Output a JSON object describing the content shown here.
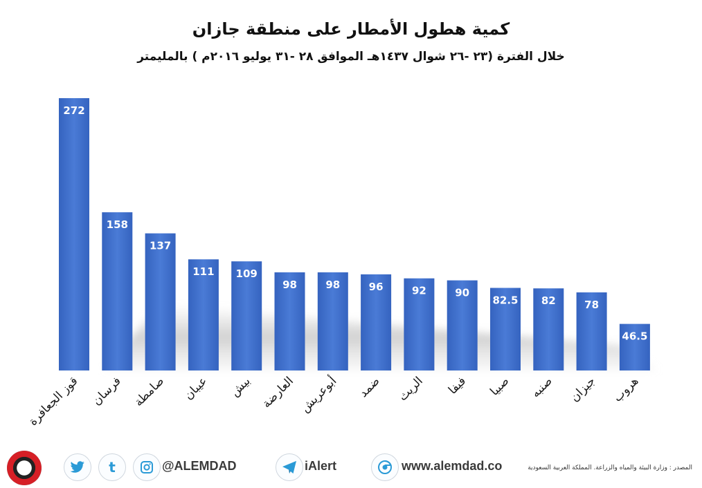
{
  "header": {
    "title": "كمية هطول الأمطار على منطقة جازان",
    "subtitle": "خلال  الفترة (٢٣ -٢٦ شوال ١٤٣٧هـ الموافق ٢٨ -٣١ يوليو ٢٠١٦م ) بالمليمتر"
  },
  "chart_data": {
    "type": "bar",
    "title": "كمية هطول الأمطار على منطقة جازان",
    "subtitle": "خلال  الفترة (٢٣ -٢٦ شوال ١٤٣٧هـ الموافق ٢٨ -٣١ يوليو ٢٠١٦م ) بالمليمتر",
    "ylabel": "",
    "xlabel": "",
    "ylim": [
      0,
      272
    ],
    "grid": false,
    "categories": [
      "قوز الجعافرة",
      "فرسان",
      "صامطة",
      "عيبان",
      "بيش",
      "العارضة",
      "أبوعريش",
      "ضمد",
      "الريث",
      "فيفا",
      "صبيا",
      "صنبه",
      "جيزان",
      "هروب"
    ],
    "values": [
      272,
      158,
      137,
      111,
      109,
      98,
      98,
      96,
      92,
      90,
      82.5,
      82,
      78,
      46.5
    ],
    "value_labels": [
      "272",
      "158",
      "137",
      "111",
      "109",
      "98",
      "98",
      "96",
      "92",
      "90",
      "82.5",
      "82",
      "78",
      "46.5"
    ],
    "bar_color": "#3f6fcc",
    "bar_color_top": "#4f80d8",
    "bar_color_bottom": "#2c56ad"
  },
  "footer": {
    "handle": "@ALEMDAD",
    "app": "iAlert",
    "website": "www.alemdad.co",
    "source": "المصدر : وزارة البيئة والمياه والزراعة. المملكة العربية السعودية",
    "icons": [
      "twitter-icon",
      "tumblr-icon",
      "instagram-icon",
      "ialert-icon",
      "browser-icon"
    ],
    "tumblr_glyph": "t"
  }
}
